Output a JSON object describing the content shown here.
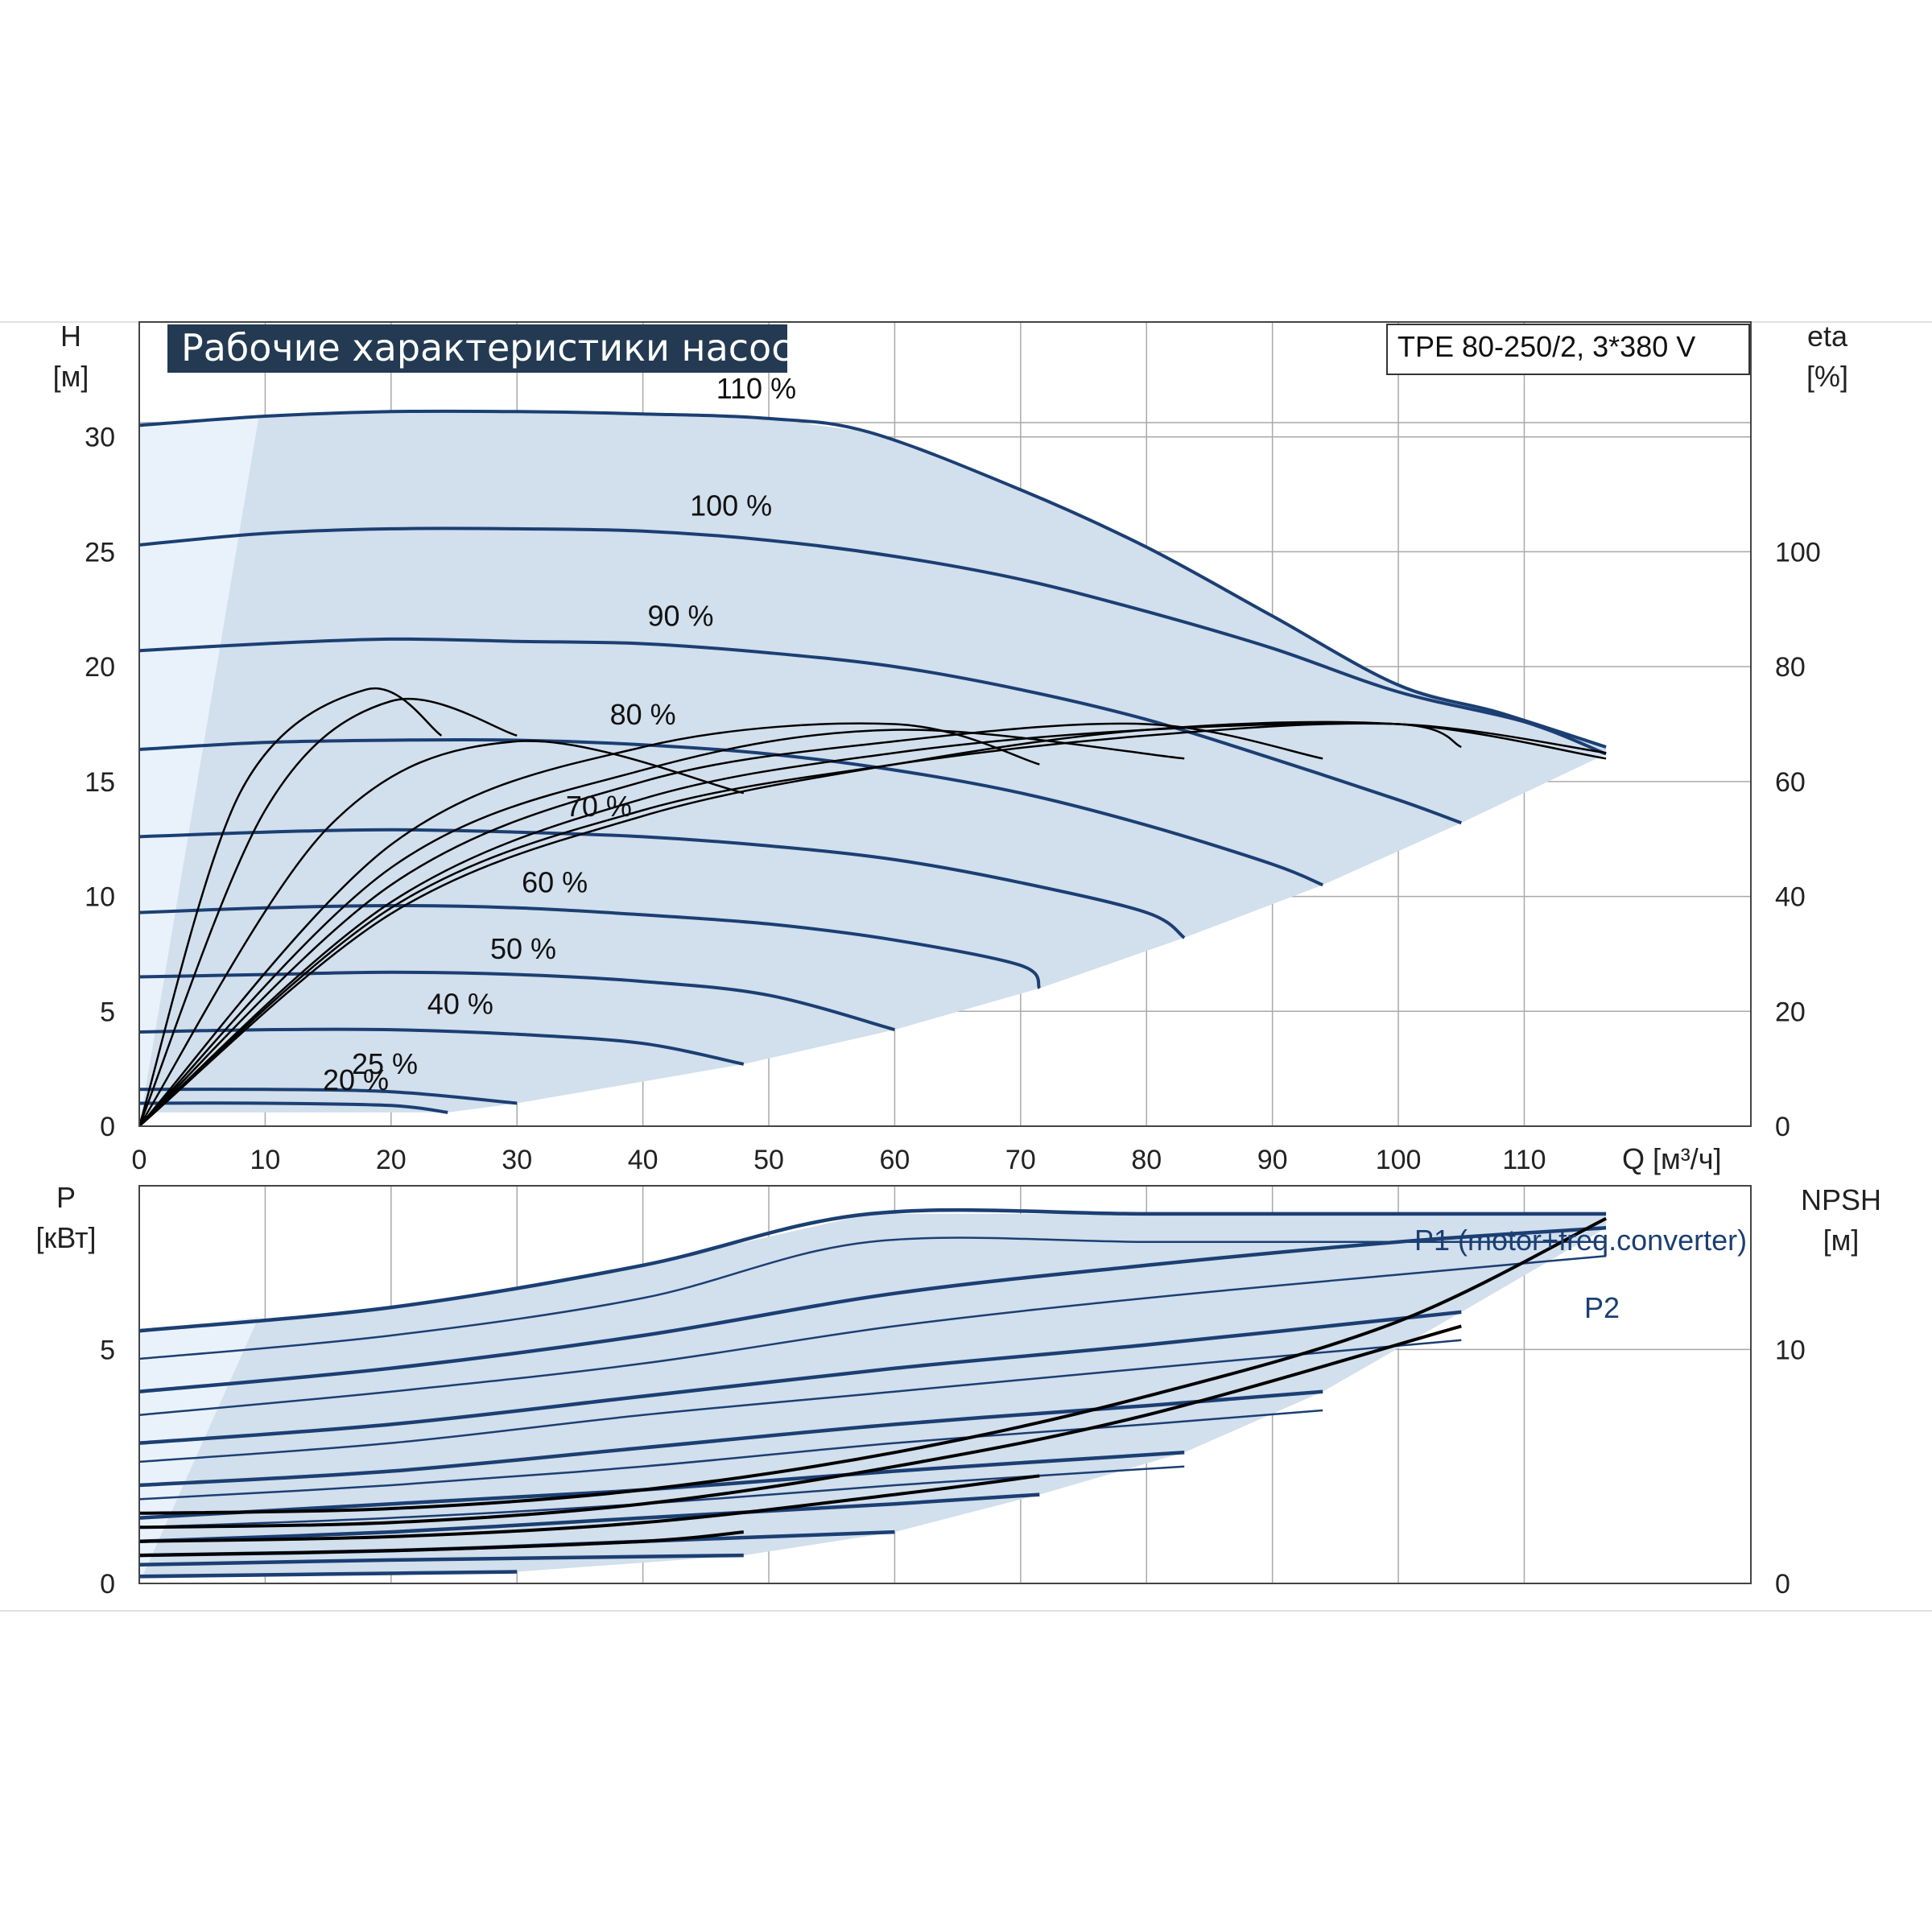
{
  "title": "Рабочие характеристики насоса",
  "model": "TPE 80-250/2, 3*380 V",
  "axes": {
    "head_label": "H",
    "head_unit": "[м]",
    "eta_label": "eta",
    "eta_unit": "[%]",
    "flow_label": "Q [м³/ч]",
    "power_label": "P",
    "power_unit": "[кВт]",
    "npsh_label": "NPSH",
    "npsh_unit": "[м]"
  },
  "legend": {
    "p1": "P1 (motor+freq.converter)",
    "p2": "P2"
  },
  "colors": {
    "title_bg": "#233a52",
    "curve_blue": "#1b3f73",
    "region_fill": "#d2dfec"
  },
  "chart_data": [
    {
      "type": "line",
      "panel": "head",
      "x_ticks": [
        "0",
        "10",
        "20",
        "30",
        "40",
        "50",
        "60",
        "70",
        "80",
        "90",
        "100",
        "110"
      ],
      "y_ticks": [
        "0",
        "5",
        "10",
        "15",
        "20",
        "25",
        "30"
      ],
      "y2_ticks": [
        "0",
        "20",
        "40",
        "60",
        "80",
        "100"
      ],
      "xlim": [
        0,
        128
      ],
      "ylim": [
        0,
        35
      ],
      "y2lim": [
        0,
        140
      ],
      "speed_labels": [
        "110 %",
        "100 %",
        "90 %",
        "80 %",
        "70 %",
        "60 %",
        "50 %",
        "40 %",
        "25 %",
        "20 %"
      ],
      "head_series": [
        {
          "name": "110 %",
          "x": [
            0,
            10,
            20,
            30,
            40,
            50,
            58,
            70,
            80,
            90,
            100,
            108,
            116.5
          ],
          "y": [
            30.5,
            30.9,
            31.1,
            31.1,
            31.0,
            30.8,
            30.2,
            27.7,
            25.2,
            22.2,
            19.2,
            18.0,
            16.5
          ]
        },
        {
          "name": "100 %",
          "x": [
            0,
            10,
            20,
            30,
            40,
            50,
            60,
            70,
            80,
            90,
            100,
            110,
            116.5
          ],
          "y": [
            25.3,
            25.8,
            26.0,
            26.0,
            25.9,
            25.5,
            24.8,
            23.8,
            22.4,
            20.8,
            18.9,
            17.6,
            16.2
          ]
        },
        {
          "name": "90 %",
          "x": [
            0,
            10,
            20,
            30,
            40,
            50,
            60,
            70,
            80,
            90,
            100,
            105
          ],
          "y": [
            20.7,
            21.0,
            21.2,
            21.1,
            21.0,
            20.6,
            20.0,
            19.0,
            17.7,
            16.0,
            14.2,
            13.2
          ]
        },
        {
          "name": "80 %",
          "x": [
            0,
            10,
            20,
            30,
            40,
            50,
            60,
            70,
            80,
            90,
            94
          ],
          "y": [
            16.4,
            16.7,
            16.8,
            16.8,
            16.6,
            16.2,
            15.5,
            14.5,
            13.1,
            11.4,
            10.5
          ]
        },
        {
          "name": "70 %",
          "x": [
            0,
            10,
            20,
            30,
            40,
            50,
            60,
            70,
            80,
            83
          ],
          "y": [
            12.6,
            12.8,
            12.9,
            12.8,
            12.6,
            12.2,
            11.6,
            10.6,
            9.3,
            8.2
          ]
        },
        {
          "name": "60 %",
          "x": [
            0,
            10,
            20,
            30,
            40,
            50,
            60,
            70,
            71.5
          ],
          "y": [
            9.3,
            9.5,
            9.6,
            9.5,
            9.2,
            8.8,
            8.1,
            7.0,
            6.0
          ]
        },
        {
          "name": "50 %",
          "x": [
            0,
            10,
            20,
            30,
            40,
            50,
            60
          ],
          "y": [
            6.5,
            6.6,
            6.7,
            6.6,
            6.3,
            5.7,
            4.2
          ]
        },
        {
          "name": "40 %",
          "x": [
            0,
            10,
            20,
            30,
            40,
            48
          ],
          "y": [
            4.1,
            4.2,
            4.2,
            4.0,
            3.6,
            2.7
          ]
        },
        {
          "name": "25 %",
          "x": [
            0,
            10,
            20,
            30
          ],
          "y": [
            1.6,
            1.6,
            1.5,
            1.0
          ]
        },
        {
          "name": "20 %",
          "x": [
            0,
            10,
            20,
            24.5
          ],
          "y": [
            1.0,
            1.0,
            0.9,
            0.6
          ]
        }
      ],
      "eta_series": [
        {
          "name": "eta 110 %",
          "x": [
            0,
            20,
            40,
            60,
            80,
            100,
            116.5
          ],
          "y": [
            0,
            38,
            55,
            63,
            68,
            70,
            65
          ]
        },
        {
          "name": "eta 100 %",
          "x": [
            0,
            20,
            40,
            60,
            80,
            100,
            116.5
          ],
          "y": [
            0,
            37,
            54,
            63,
            69,
            70,
            64
          ]
        },
        {
          "name": "eta 90 %",
          "x": [
            0,
            20,
            40,
            60,
            80,
            100,
            105
          ],
          "y": [
            0,
            39,
            57,
            65,
            69,
            70,
            66
          ]
        },
        {
          "name": "eta 80 %",
          "x": [
            0,
            20,
            40,
            60,
            80,
            94
          ],
          "y": [
            0,
            42,
            60,
            67,
            70,
            64
          ]
        },
        {
          "name": "eta 70 %",
          "x": [
            0,
            20,
            40,
            60,
            83
          ],
          "y": [
            0,
            45,
            62,
            69,
            64
          ]
        },
        {
          "name": "eta 60 %",
          "x": [
            0,
            20,
            40,
            60,
            71.5
          ],
          "y": [
            0,
            49,
            66,
            70,
            63
          ]
        },
        {
          "name": "eta 50 %",
          "x": [
            0,
            15,
            30,
            48
          ],
          "y": [
            0,
            52,
            67,
            58
          ]
        },
        {
          "name": "eta 40 %",
          "x": [
            0,
            10,
            20,
            30
          ],
          "y": [
            0,
            55,
            74,
            68
          ]
        },
        {
          "name": "eta 25 %",
          "x": [
            0,
            8,
            18,
            24
          ],
          "y": [
            0,
            58,
            76,
            68
          ]
        }
      ]
    },
    {
      "type": "line",
      "panel": "power",
      "x_ticks": [
        "0",
        "10",
        "20",
        "30",
        "40",
        "50",
        "60",
        "70",
        "80",
        "90",
        "100",
        "110"
      ],
      "y_ticks": [
        "0",
        "5"
      ],
      "y2_ticks": [
        "0",
        "10"
      ],
      "xlim": [
        0,
        128
      ],
      "ylim": [
        0,
        8.5
      ],
      "y2lim": [
        0,
        17
      ],
      "p1_series": [
        {
          "name": "P1 110 %",
          "x": [
            0,
            20,
            40,
            58,
            80,
            100,
            116.5
          ],
          "y": [
            5.4,
            5.9,
            6.8,
            7.9,
            7.9,
            7.9,
            7.9
          ]
        },
        {
          "name": "P1 100 %",
          "x": [
            0,
            20,
            40,
            60,
            80,
            100,
            116.5
          ],
          "y": [
            4.1,
            4.6,
            5.3,
            6.2,
            6.8,
            7.3,
            7.6
          ]
        },
        {
          "name": "P1 90 %",
          "x": [
            0,
            20,
            40,
            60,
            80,
            105
          ],
          "y": [
            3.0,
            3.4,
            4.0,
            4.6,
            5.1,
            5.8
          ]
        },
        {
          "name": "P1 80 %",
          "x": [
            0,
            20,
            40,
            60,
            80,
            94
          ],
          "y": [
            2.1,
            2.4,
            2.9,
            3.4,
            3.8,
            4.1
          ]
        },
        {
          "name": "P1 70 %",
          "x": [
            0,
            20,
            40,
            60,
            83
          ],
          "y": [
            1.4,
            1.7,
            2.0,
            2.4,
            2.8
          ]
        },
        {
          "name": "P1 60 %",
          "x": [
            0,
            20,
            40,
            60,
            71.5
          ],
          "y": [
            0.9,
            1.1,
            1.4,
            1.7,
            1.9
          ]
        },
        {
          "name": "P1 50 %",
          "x": [
            0,
            20,
            40,
            60
          ],
          "y": [
            0.6,
            0.7,
            0.9,
            1.1
          ]
        },
        {
          "name": "P1 40 %",
          "x": [
            0,
            20,
            48
          ],
          "y": [
            0.4,
            0.5,
            0.6
          ]
        },
        {
          "name": "P1 25 %",
          "x": [
            0,
            15,
            30
          ],
          "y": [
            0.15,
            0.2,
            0.25
          ]
        }
      ],
      "p2_series": [
        {
          "name": "P2 110 %",
          "x": [
            0,
            20,
            40,
            58,
            80,
            100,
            116.5
          ],
          "y": [
            4.8,
            5.3,
            6.1,
            7.3,
            7.3,
            7.3,
            7.3
          ]
        },
        {
          "name": "P2 100 %",
          "x": [
            0,
            20,
            40,
            60,
            80,
            100,
            116.5
          ],
          "y": [
            3.6,
            4.1,
            4.7,
            5.5,
            6.1,
            6.6,
            7.0
          ]
        },
        {
          "name": "P2 90 %",
          "x": [
            0,
            20,
            40,
            60,
            80,
            105
          ],
          "y": [
            2.6,
            3.0,
            3.6,
            4.1,
            4.6,
            5.2
          ]
        },
        {
          "name": "P2 80 %",
          "x": [
            0,
            20,
            40,
            60,
            80,
            94
          ],
          "y": [
            1.8,
            2.1,
            2.5,
            3.0,
            3.4,
            3.7
          ]
        },
        {
          "name": "P2 70 %",
          "x": [
            0,
            20,
            40,
            60,
            83
          ],
          "y": [
            1.2,
            1.4,
            1.7,
            2.1,
            2.5
          ]
        }
      ],
      "npsh_series": [
        {
          "name": "NPSH 110 %",
          "x": [
            0,
            20,
            40,
            60,
            80,
            100,
            116.5
          ],
          "y": [
            1.5,
            1.6,
            2.0,
            2.8,
            4.0,
            5.6,
            7.8
          ]
        },
        {
          "name": "NPSH 100 %",
          "x": [
            0,
            20,
            40,
            60,
            80,
            105
          ],
          "y": [
            1.2,
            1.3,
            1.7,
            2.5,
            3.6,
            5.5
          ]
        },
        {
          "name": "NPSH 80 %",
          "x": [
            0,
            20,
            40,
            60,
            71.5
          ],
          "y": [
            0.9,
            1.0,
            1.3,
            1.9,
            2.3
          ]
        },
        {
          "name": "NPSH 60 %",
          "x": [
            0,
            20,
            40,
            48
          ],
          "y": [
            0.6,
            0.7,
            0.9,
            1.1
          ]
        }
      ]
    }
  ]
}
